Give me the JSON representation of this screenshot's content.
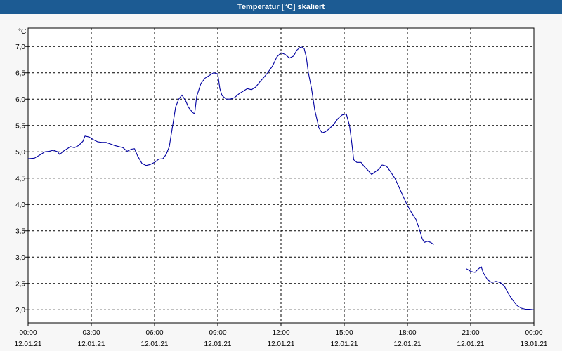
{
  "window": {
    "title": "Temperatur [°C] skaliert"
  },
  "chart_data": {
    "type": "line",
    "title": "Temperatur [°C] skaliert",
    "ylabel": "°C",
    "xlabel": "",
    "ylim": [
      1.75,
      7.35
    ],
    "xlim": [
      0,
      24
    ],
    "grid": true,
    "colors": {
      "line": "#0000a0",
      "grid": "#000000",
      "titlebar": "#1c5b93"
    },
    "y_ticks": [
      "2,0",
      "2,5",
      "3,0",
      "3,5",
      "4,0",
      "4,5",
      "5,0",
      "5,5",
      "6,0",
      "6,5",
      "7,0"
    ],
    "y_tick_values": [
      2.0,
      2.5,
      3.0,
      3.5,
      4.0,
      4.5,
      5.0,
      5.5,
      6.0,
      6.5,
      7.0
    ],
    "x_ticks": [
      {
        "time": "00:00",
        "date": "12.01.21"
      },
      {
        "time": "03:00",
        "date": "12.01.21"
      },
      {
        "time": "06:00",
        "date": "12.01.21"
      },
      {
        "time": "09:00",
        "date": "12.01.21"
      },
      {
        "time": "12:00",
        "date": "12.01.21"
      },
      {
        "time": "15:00",
        "date": "12.01.21"
      },
      {
        "time": "18:00",
        "date": "12.01.21"
      },
      {
        "time": "21:00",
        "date": "12.01.21"
      },
      {
        "time": "00:00",
        "date": "13.01.21"
      }
    ],
    "x_tick_hours": [
      0,
      3,
      6,
      9,
      12,
      15,
      18,
      21,
      24
    ],
    "series": [
      {
        "segments": [
          [
            [
              0.0,
              4.87
            ],
            [
              0.3,
              4.88
            ],
            [
              0.6,
              4.95
            ],
            [
              0.8,
              5.0
            ],
            [
              1.0,
              5.01
            ],
            [
              1.2,
              5.03
            ],
            [
              1.4,
              5.0
            ],
            [
              1.5,
              4.95
            ],
            [
              1.7,
              5.02
            ],
            [
              1.9,
              5.07
            ],
            [
              2.0,
              5.1
            ],
            [
              2.2,
              5.08
            ],
            [
              2.4,
              5.12
            ],
            [
              2.6,
              5.2
            ],
            [
              2.7,
              5.3
            ],
            [
              2.9,
              5.28
            ],
            [
              3.1,
              5.23
            ],
            [
              3.3,
              5.19
            ],
            [
              3.5,
              5.18
            ],
            [
              3.7,
              5.18
            ],
            [
              3.9,
              5.15
            ],
            [
              4.1,
              5.12
            ],
            [
              4.3,
              5.1
            ],
            [
              4.5,
              5.08
            ],
            [
              4.7,
              5.01
            ],
            [
              4.9,
              5.05
            ],
            [
              5.05,
              5.06
            ],
            [
              5.2,
              4.92
            ],
            [
              5.4,
              4.78
            ],
            [
              5.6,
              4.74
            ],
            [
              5.8,
              4.76
            ],
            [
              6.0,
              4.8
            ],
            [
              6.2,
              4.86
            ],
            [
              6.4,
              4.87
            ],
            [
              6.55,
              4.95
            ],
            [
              6.7,
              5.1
            ],
            [
              6.8,
              5.35
            ],
            [
              6.9,
              5.6
            ],
            [
              7.0,
              5.85
            ],
            [
              7.15,
              6.0
            ],
            [
              7.3,
              6.08
            ],
            [
              7.5,
              5.95
            ],
            [
              7.6,
              5.85
            ],
            [
              7.8,
              5.75
            ],
            [
              7.9,
              5.72
            ],
            [
              8.0,
              6.05
            ],
            [
              8.2,
              6.3
            ],
            [
              8.4,
              6.4
            ],
            [
              8.6,
              6.45
            ],
            [
              8.8,
              6.5
            ],
            [
              9.0,
              6.48
            ],
            [
              9.1,
              6.2
            ],
            [
              9.2,
              6.07
            ],
            [
              9.4,
              6.0
            ],
            [
              9.6,
              6.0
            ],
            [
              9.8,
              6.03
            ],
            [
              10.0,
              6.1
            ],
            [
              10.2,
              6.15
            ],
            [
              10.4,
              6.2
            ],
            [
              10.6,
              6.18
            ],
            [
              10.8,
              6.23
            ],
            [
              11.0,
              6.33
            ],
            [
              11.2,
              6.42
            ],
            [
              11.4,
              6.52
            ],
            [
              11.6,
              6.63
            ],
            [
              11.8,
              6.8
            ],
            [
              12.0,
              6.88
            ],
            [
              12.2,
              6.85
            ],
            [
              12.4,
              6.78
            ],
            [
              12.6,
              6.82
            ],
            [
              12.75,
              6.93
            ],
            [
              12.9,
              6.98
            ],
            [
              13.0,
              6.99
            ],
            [
              13.1,
              6.96
            ],
            [
              13.2,
              6.8
            ],
            [
              13.3,
              6.5
            ],
            [
              13.45,
              6.2
            ],
            [
              13.6,
              5.8
            ],
            [
              13.8,
              5.45
            ],
            [
              13.95,
              5.36
            ],
            [
              14.1,
              5.38
            ],
            [
              14.3,
              5.44
            ],
            [
              14.5,
              5.52
            ],
            [
              14.7,
              5.63
            ],
            [
              14.9,
              5.7
            ],
            [
              15.1,
              5.72
            ],
            [
              15.25,
              5.5
            ],
            [
              15.35,
              5.2
            ],
            [
              15.45,
              4.85
            ],
            [
              15.6,
              4.8
            ],
            [
              15.8,
              4.8
            ],
            [
              15.95,
              4.72
            ],
            [
              16.1,
              4.66
            ],
            [
              16.3,
              4.57
            ],
            [
              16.5,
              4.63
            ],
            [
              16.65,
              4.67
            ],
            [
              16.8,
              4.75
            ],
            [
              17.0,
              4.73
            ],
            [
              17.2,
              4.62
            ],
            [
              17.4,
              4.5
            ],
            [
              17.6,
              4.33
            ],
            [
              17.8,
              4.15
            ],
            [
              18.0,
              3.98
            ],
            [
              18.2,
              3.84
            ],
            [
              18.4,
              3.72
            ],
            [
              18.55,
              3.55
            ],
            [
              18.7,
              3.35
            ],
            [
              18.8,
              3.28
            ],
            [
              18.95,
              3.3
            ],
            [
              19.1,
              3.28
            ],
            [
              19.25,
              3.24
            ]
          ],
          [
            [
              20.8,
              2.78
            ],
            [
              21.0,
              2.73
            ],
            [
              21.2,
              2.71
            ],
            [
              21.35,
              2.77
            ],
            [
              21.5,
              2.82
            ],
            [
              21.6,
              2.7
            ],
            [
              21.8,
              2.57
            ],
            [
              22.0,
              2.52
            ],
            [
              22.2,
              2.54
            ],
            [
              22.4,
              2.52
            ],
            [
              22.6,
              2.45
            ],
            [
              22.8,
              2.3
            ],
            [
              23.0,
              2.18
            ],
            [
              23.2,
              2.08
            ],
            [
              23.4,
              2.03
            ],
            [
              23.6,
              2.01
            ],
            [
              23.8,
              2.01
            ],
            [
              24.0,
              2.0
            ]
          ]
        ]
      }
    ]
  }
}
